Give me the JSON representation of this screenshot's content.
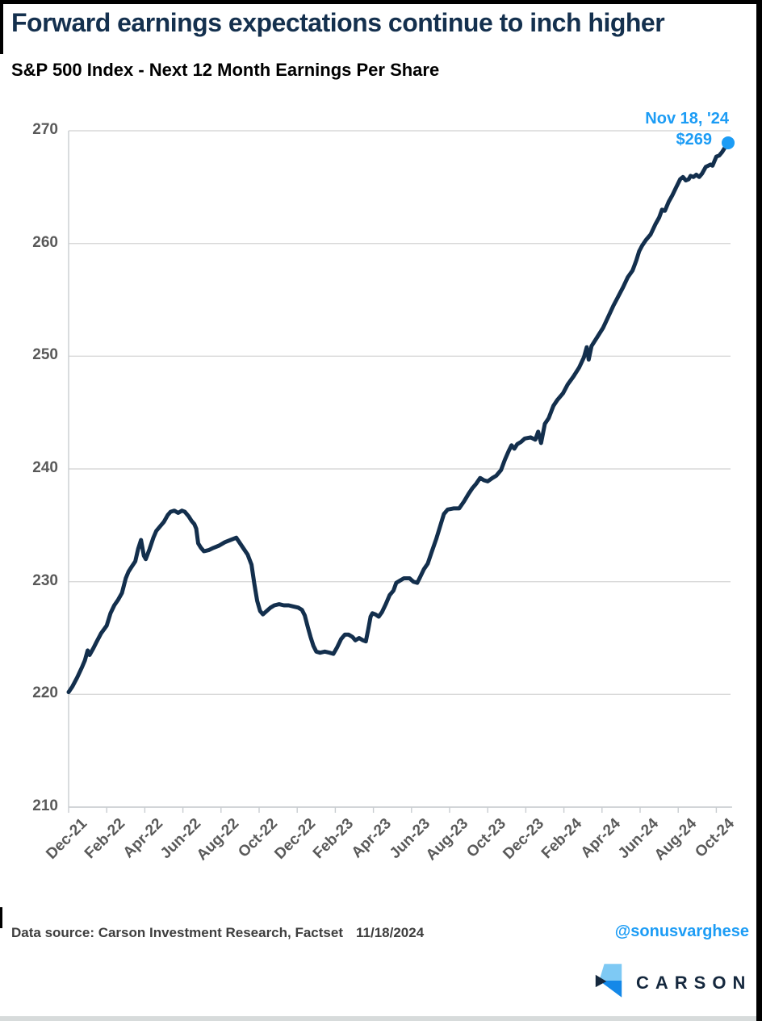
{
  "header": {
    "title": "Forward earnings expectations continue to inch higher",
    "subtitle": "S&P 500 Index - Next 12 Month Earnings Per Share"
  },
  "annotation": {
    "date_label": "Nov 18, '24",
    "value_label": "$269"
  },
  "footer": {
    "source_label": "Data source: Carson Investment Research, Factset",
    "date": "11/18/2024",
    "handle": "@sonusvarghese",
    "brand": "CARSON"
  },
  "colors": {
    "line": "#132F4D",
    "accent_blue": "#1C9CF5",
    "title_navy": "#14304E",
    "grid": "#D9D9D9",
    "axis": "#C9CDD1",
    "tick_text": "#595959",
    "footer_text": "#3E3E3E",
    "logo_light_blue": "#7EC9F4",
    "logo_blue": "#1488E8",
    "logo_navy": "#15283E"
  },
  "chart_data": {
    "type": "line",
    "title": "S&P 500 Index - Next 12 Month Earnings Per Share",
    "xlabel": "",
    "ylabel": "",
    "x_unit": "months since Dec-2021",
    "x_tick_labels": [
      "Dec-21",
      "Feb-22",
      "Apr-22",
      "Jun-22",
      "Aug-22",
      "Oct-22",
      "Dec-22",
      "Feb-23",
      "Apr-23",
      "Jun-23",
      "Aug-23",
      "Oct-23",
      "Dec-23",
      "Feb-24",
      "Apr-24",
      "Jun-24",
      "Aug-24",
      "Oct-24"
    ],
    "x_tick_months": [
      0,
      2,
      4,
      6,
      8,
      10,
      12,
      14,
      16,
      18,
      20,
      22,
      24,
      26,
      28,
      30,
      32,
      34
    ],
    "ylim": [
      210,
      270
    ],
    "y_ticks": [
      210,
      220,
      230,
      240,
      250,
      260,
      270
    ],
    "grid": true,
    "legend": "none",
    "series": [
      {
        "name": "Next 12 Month Earnings Per Share",
        "points": [
          [
            0,
            220.2
          ],
          [
            0.2,
            220.7
          ],
          [
            0.45,
            221.5
          ],
          [
            0.7,
            222.4
          ],
          [
            0.85,
            223.0
          ],
          [
            1.0,
            223.9
          ],
          [
            1.1,
            223.5
          ],
          [
            1.3,
            224.1
          ],
          [
            1.45,
            224.6
          ],
          [
            1.7,
            225.4
          ],
          [
            2.0,
            226.1
          ],
          [
            2.2,
            227.2
          ],
          [
            2.4,
            227.9
          ],
          [
            2.6,
            228.4
          ],
          [
            2.8,
            229.0
          ],
          [
            3.0,
            230.3
          ],
          [
            3.15,
            230.9
          ],
          [
            3.3,
            231.3
          ],
          [
            3.5,
            231.8
          ],
          [
            3.65,
            232.9
          ],
          [
            3.8,
            233.7
          ],
          [
            3.95,
            232.3
          ],
          [
            4.05,
            232.0
          ],
          [
            4.25,
            232.9
          ],
          [
            4.45,
            233.9
          ],
          [
            4.6,
            234.5
          ],
          [
            4.8,
            234.9
          ],
          [
            5.0,
            235.3
          ],
          [
            5.2,
            235.9
          ],
          [
            5.35,
            236.2
          ],
          [
            5.55,
            236.3
          ],
          [
            5.75,
            236.1
          ],
          [
            5.95,
            236.3
          ],
          [
            6.1,
            236.2
          ],
          [
            6.3,
            235.8
          ],
          [
            6.45,
            235.4
          ],
          [
            6.6,
            235.1
          ],
          [
            6.7,
            234.7
          ],
          [
            6.8,
            233.4
          ],
          [
            6.95,
            233.0
          ],
          [
            7.1,
            232.7
          ],
          [
            7.35,
            232.8
          ],
          [
            7.6,
            233.0
          ],
          [
            7.9,
            233.2
          ],
          [
            8.2,
            233.5
          ],
          [
            8.5,
            233.7
          ],
          [
            8.8,
            233.9
          ],
          [
            9.0,
            233.4
          ],
          [
            9.2,
            232.9
          ],
          [
            9.4,
            232.4
          ],
          [
            9.6,
            231.5
          ],
          [
            9.75,
            229.8
          ],
          [
            9.9,
            228.3
          ],
          [
            10.05,
            227.4
          ],
          [
            10.2,
            227.1
          ],
          [
            10.4,
            227.4
          ],
          [
            10.6,
            227.7
          ],
          [
            10.8,
            227.9
          ],
          [
            11.05,
            228.0
          ],
          [
            11.3,
            227.9
          ],
          [
            11.55,
            227.9
          ],
          [
            11.8,
            227.8
          ],
          [
            12.05,
            227.7
          ],
          [
            12.25,
            227.5
          ],
          [
            12.4,
            227.0
          ],
          [
            12.55,
            226.0
          ],
          [
            12.7,
            225.1
          ],
          [
            12.85,
            224.3
          ],
          [
            13.0,
            223.8
          ],
          [
            13.2,
            223.7
          ],
          [
            13.45,
            223.8
          ],
          [
            13.7,
            223.7
          ],
          [
            13.9,
            223.6
          ],
          [
            14.1,
            224.2
          ],
          [
            14.3,
            224.9
          ],
          [
            14.5,
            225.3
          ],
          [
            14.7,
            225.3
          ],
          [
            14.9,
            225.1
          ],
          [
            15.05,
            224.8
          ],
          [
            15.25,
            225.0
          ],
          [
            15.45,
            224.8
          ],
          [
            15.6,
            224.7
          ],
          [
            15.72,
            225.7
          ],
          [
            15.85,
            226.9
          ],
          [
            15.95,
            227.2
          ],
          [
            16.1,
            227.1
          ],
          [
            16.28,
            226.9
          ],
          [
            16.45,
            227.3
          ],
          [
            16.65,
            228.0
          ],
          [
            16.85,
            228.8
          ],
          [
            17.05,
            229.2
          ],
          [
            17.2,
            229.9
          ],
          [
            17.4,
            230.1
          ],
          [
            17.6,
            230.3
          ],
          [
            17.9,
            230.3
          ],
          [
            18.1,
            230.0
          ],
          [
            18.3,
            229.9
          ],
          [
            18.45,
            230.4
          ],
          [
            18.65,
            231.1
          ],
          [
            18.85,
            231.6
          ],
          [
            19.05,
            232.6
          ],
          [
            19.3,
            233.8
          ],
          [
            19.5,
            234.9
          ],
          [
            19.7,
            236.0
          ],
          [
            19.9,
            236.4
          ],
          [
            20.2,
            236.5
          ],
          [
            20.5,
            236.5
          ],
          [
            20.75,
            237.1
          ],
          [
            21.0,
            237.8
          ],
          [
            21.2,
            238.3
          ],
          [
            21.4,
            238.7
          ],
          [
            21.6,
            239.2
          ],
          [
            21.8,
            239.0
          ],
          [
            22.0,
            238.9
          ],
          [
            22.25,
            239.2
          ],
          [
            22.45,
            239.4
          ],
          [
            22.7,
            239.9
          ],
          [
            22.9,
            240.8
          ],
          [
            23.1,
            241.6
          ],
          [
            23.25,
            242.1
          ],
          [
            23.4,
            241.8
          ],
          [
            23.55,
            242.2
          ],
          [
            23.75,
            242.4
          ],
          [
            23.95,
            242.7
          ],
          [
            24.25,
            242.8
          ],
          [
            24.5,
            242.6
          ],
          [
            24.65,
            243.3
          ],
          [
            24.8,
            242.3
          ],
          [
            25.0,
            244.0
          ],
          [
            25.2,
            244.5
          ],
          [
            25.45,
            245.6
          ],
          [
            25.65,
            246.1
          ],
          [
            25.95,
            246.7
          ],
          [
            26.2,
            247.5
          ],
          [
            26.5,
            248.2
          ],
          [
            26.8,
            249.0
          ],
          [
            27.05,
            249.9
          ],
          [
            27.2,
            250.8
          ],
          [
            27.3,
            249.7
          ],
          [
            27.45,
            250.9
          ],
          [
            27.75,
            251.7
          ],
          [
            28.05,
            252.5
          ],
          [
            28.3,
            253.4
          ],
          [
            28.6,
            254.5
          ],
          [
            28.85,
            255.3
          ],
          [
            29.1,
            256.1
          ],
          [
            29.35,
            257.0
          ],
          [
            29.6,
            257.6
          ],
          [
            29.8,
            258.5
          ],
          [
            29.95,
            259.3
          ],
          [
            30.1,
            259.8
          ],
          [
            30.3,
            260.3
          ],
          [
            30.55,
            260.8
          ],
          [
            30.8,
            261.7
          ],
          [
            31.0,
            262.3
          ],
          [
            31.15,
            263.0
          ],
          [
            31.3,
            262.9
          ],
          [
            31.5,
            263.7
          ],
          [
            31.7,
            264.3
          ],
          [
            31.9,
            265.0
          ],
          [
            32.1,
            265.7
          ],
          [
            32.25,
            265.9
          ],
          [
            32.4,
            265.6
          ],
          [
            32.55,
            265.7
          ],
          [
            32.65,
            266.0
          ],
          [
            32.8,
            265.9
          ],
          [
            32.95,
            266.1
          ],
          [
            33.1,
            265.9
          ],
          [
            33.25,
            266.2
          ],
          [
            33.45,
            266.8
          ],
          [
            33.7,
            267.0
          ],
          [
            33.8,
            266.9
          ],
          [
            34.0,
            267.7
          ],
          [
            34.15,
            267.8
          ],
          [
            34.3,
            268.1
          ],
          [
            34.45,
            268.5
          ],
          [
            34.62,
            268.9
          ]
        ]
      }
    ],
    "end_point": {
      "x_month": 34.62,
      "value": 269,
      "date": "Nov 18, '24",
      "label": "$269"
    }
  }
}
